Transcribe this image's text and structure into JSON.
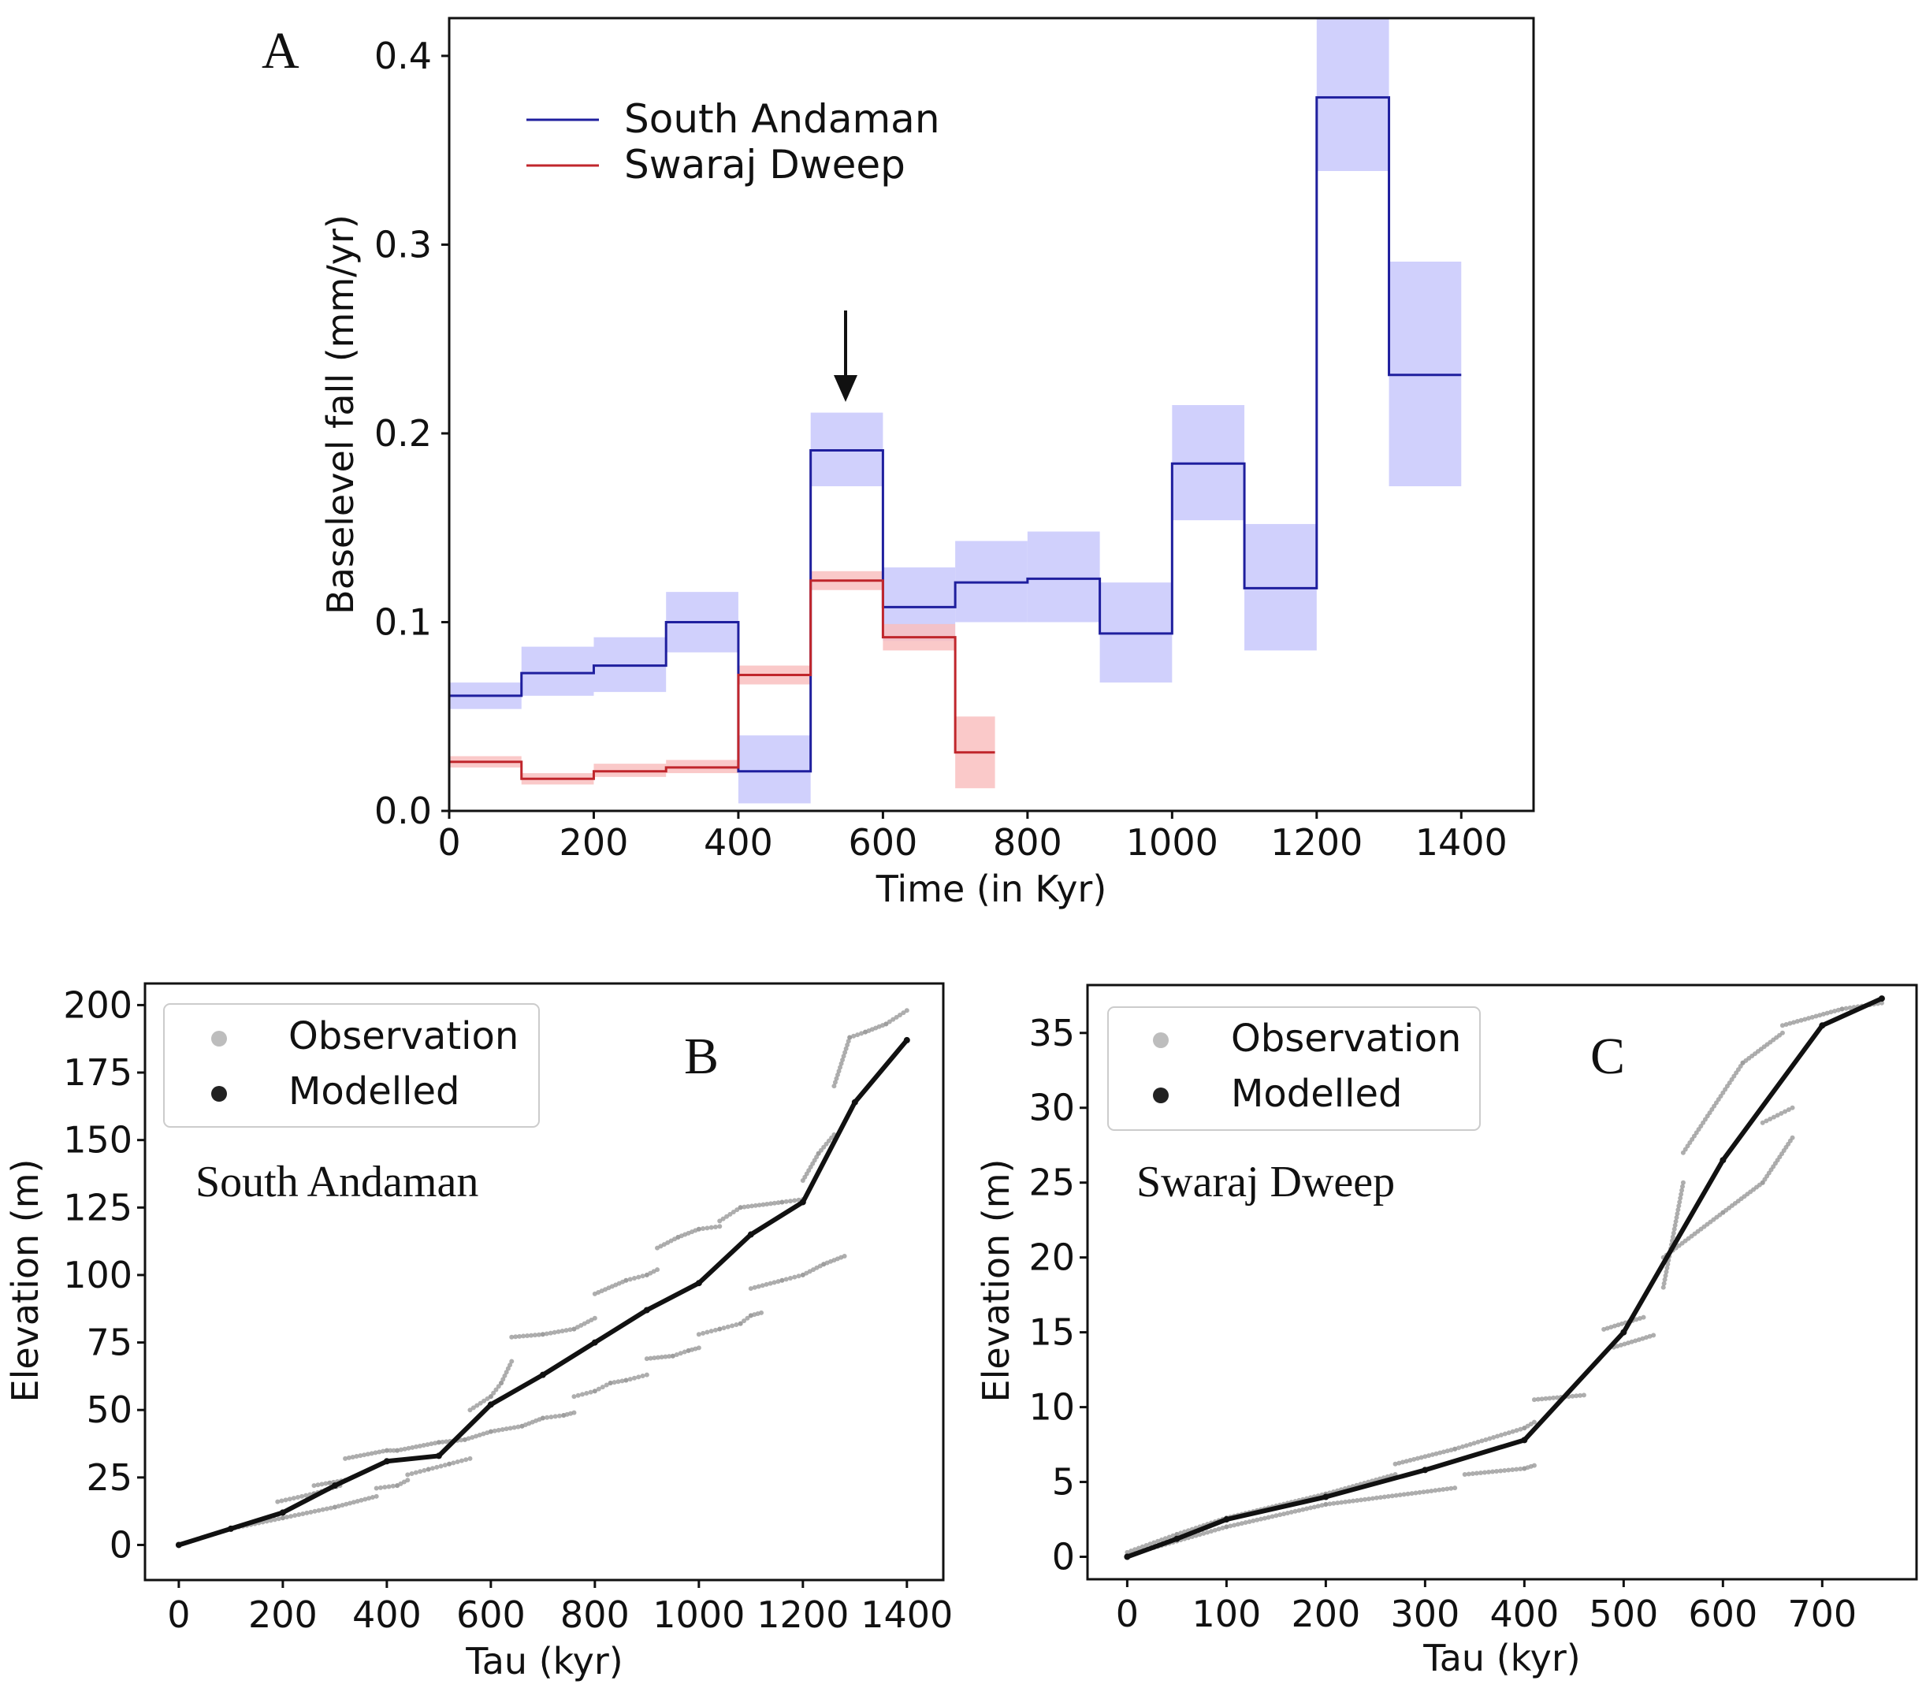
{
  "chart_data": [
    {
      "panel": "A",
      "type": "line",
      "step": true,
      "xlabel": "Time (in Kyr)",
      "ylabel": "Baselevel fall (mm/yr)",
      "xlim": [
        0,
        1500
      ],
      "ylim": [
        0,
        0.42
      ],
      "xticks": [
        "0",
        "200",
        "400",
        "600",
        "800",
        "1000",
        "1200",
        "1400"
      ],
      "yticks": [
        "0.0",
        "0.1",
        "0.2",
        "0.3",
        "0.4"
      ],
      "legend_position": "upper-left",
      "annotation": "arrow pointing down at 550 Kyr",
      "series": [
        {
          "name": "South Andaman",
          "color": "#1f1f9e",
          "band_color": "#c8c8fb",
          "bin_starts": [
            0,
            100,
            200,
            300,
            400,
            500,
            600,
            700,
            800,
            900,
            1000,
            1100,
            1200,
            1300
          ],
          "bin_ends": [
            100,
            200,
            300,
            400,
            500,
            600,
            700,
            800,
            900,
            1000,
            1100,
            1200,
            1300,
            1400
          ],
          "values": [
            0.061,
            0.073,
            0.077,
            0.1,
            0.021,
            0.191,
            0.108,
            0.121,
            0.123,
            0.094,
            0.184,
            0.118,
            0.378,
            0.231
          ],
          "lower": [
            0.054,
            0.061,
            0.063,
            0.084,
            0.004,
            0.172,
            0.09,
            0.1,
            0.1,
            0.068,
            0.154,
            0.085,
            0.339,
            0.172
          ],
          "upper": [
            0.068,
            0.087,
            0.092,
            0.116,
            0.04,
            0.211,
            0.129,
            0.143,
            0.148,
            0.121,
            0.215,
            0.152,
            0.42,
            0.291
          ]
        },
        {
          "name": "Swaraj Dweep",
          "color": "#c0262c",
          "band_color": "#f9c0c0",
          "bin_starts": [
            0,
            100,
            200,
            300,
            400,
            500,
            600,
            700
          ],
          "bin_ends": [
            100,
            200,
            300,
            400,
            500,
            600,
            700,
            755
          ],
          "values": [
            0.026,
            0.017,
            0.021,
            0.023,
            0.072,
            0.122,
            0.092,
            0.031
          ],
          "lower": [
            0.023,
            0.014,
            0.018,
            0.02,
            0.067,
            0.117,
            0.085,
            0.012
          ],
          "upper": [
            0.029,
            0.02,
            0.025,
            0.027,
            0.077,
            0.127,
            0.099,
            0.05
          ]
        }
      ]
    },
    {
      "panel": "B",
      "type": "scatter",
      "title": "South Andaman",
      "xlabel": "Tau (kyr)",
      "ylabel": "Elevation (m)",
      "xlim": [
        -65,
        1470
      ],
      "ylim": [
        -13,
        208
      ],
      "xticks": [
        "0",
        "200",
        "400",
        "600",
        "800",
        "1000",
        "1200",
        "1400"
      ],
      "yticks": [
        "0",
        "25",
        "50",
        "75",
        "100",
        "125",
        "150",
        "175",
        "200"
      ],
      "legend_position": "upper-left",
      "series": [
        {
          "name": "Modelled",
          "color": "#111111",
          "x": [
            0,
            100,
            200,
            300,
            400,
            500,
            600,
            700,
            800,
            900,
            1000,
            1100,
            1200,
            1300,
            1400
          ],
          "y": [
            0,
            6,
            12,
            22,
            31,
            33,
            52,
            63,
            75,
            87,
            97,
            115,
            127,
            164,
            187
          ]
        },
        {
          "name": "Observation",
          "color": "#9a9a9a",
          "segments": [
            {
              "x": [
                0,
                100,
                200,
                300,
                380
              ],
              "y": [
                0,
                6,
                10,
                14,
                18
              ]
            },
            {
              "x": [
                190,
                260,
                310
              ],
              "y": [
                16,
                19,
                22
              ]
            },
            {
              "x": [
                260,
                290,
                320
              ],
              "y": [
                22,
                23,
                24
              ]
            },
            {
              "x": [
                320,
                400,
                420
              ],
              "y": [
                32,
                35,
                35
              ]
            },
            {
              "x": [
                420,
                500,
                550
              ],
              "y": [
                35,
                38,
                39
              ]
            },
            {
              "x": [
                550,
                600,
                660,
                700,
                740,
                760
              ],
              "y": [
                39,
                42,
                44,
                47,
                48,
                49
              ]
            },
            {
              "x": [
                760,
                800,
                830,
                860,
                900
              ],
              "y": [
                55,
                57,
                60,
                61,
                63
              ]
            },
            {
              "x": [
                900,
                950,
                980,
                1000
              ],
              "y": [
                69,
                70,
                72,
                73
              ]
            },
            {
              "x": [
                1000,
                1040,
                1080,
                1100,
                1120
              ],
              "y": [
                78,
                80,
                82,
                85,
                86
              ]
            },
            {
              "x": [
                1100,
                1160,
                1200,
                1240,
                1280
              ],
              "y": [
                95,
                98,
                100,
                104,
                107
              ]
            },
            {
              "x": [
                380,
                420,
                440
              ],
              "y": [
                21,
                22,
                24
              ]
            },
            {
              "x": [
                440,
                480,
                520,
                560
              ],
              "y": [
                26,
                28,
                30,
                32
              ]
            },
            {
              "x": [
                560,
                600,
                620,
                640
              ],
              "y": [
                50,
                55,
                60,
                68
              ]
            },
            {
              "x": [
                640,
                700,
                760,
                800
              ],
              "y": [
                77,
                78,
                80,
                84
              ]
            },
            {
              "x": [
                800,
                860,
                900,
                920
              ],
              "y": [
                93,
                98,
                100,
                102
              ]
            },
            {
              "x": [
                920,
                960,
                1000,
                1040
              ],
              "y": [
                110,
                114,
                117,
                118
              ]
            },
            {
              "x": [
                1040,
                1080,
                1160,
                1200
              ],
              "y": [
                120,
                125,
                127,
                128
              ]
            },
            {
              "x": [
                1200,
                1230,
                1260
              ],
              "y": [
                135,
                145,
                152
              ]
            },
            {
              "x": [
                1260,
                1290,
                1320,
                1360,
                1400
              ],
              "y": [
                170,
                188,
                190,
                193,
                198
              ]
            }
          ]
        }
      ]
    },
    {
      "panel": "C",
      "type": "scatter",
      "title": "Swaraj Dweep",
      "xlabel": "Tau (kyr)",
      "ylabel": "Elevation (m)",
      "xlim": [
        -40,
        795
      ],
      "ylim": [
        -1.5,
        38.2
      ],
      "xticks": [
        "0",
        "100",
        "200",
        "300",
        "400",
        "500",
        "600",
        "700"
      ],
      "yticks": [
        "0",
        "5",
        "10",
        "15",
        "20",
        "25",
        "30",
        "35"
      ],
      "legend_position": "upper-left",
      "series": [
        {
          "name": "Modelled",
          "color": "#111111",
          "x": [
            0,
            50,
            100,
            200,
            300,
            400,
            500,
            600,
            700,
            760
          ],
          "y": [
            0,
            1.2,
            2.5,
            4.0,
            5.8,
            7.8,
            15.0,
            26.5,
            35.5,
            37.3
          ]
        },
        {
          "name": "Observation",
          "color": "#9a9a9a",
          "segments": [
            {
              "x": [
                0,
                50,
                100,
                200,
                270
              ],
              "y": [
                0.3,
                1.5,
                2.6,
                4.2,
                5.5
              ]
            },
            {
              "x": [
                270,
                330,
                400,
                410
              ],
              "y": [
                6.2,
                7.2,
                8.6,
                9.0
              ]
            },
            {
              "x": [
                410,
                460
              ],
              "y": [
                10.5,
                10.8
              ]
            },
            {
              "x": [
                0,
                100,
                200,
                330
              ],
              "y": [
                0.1,
                2.0,
                3.5,
                4.6
              ]
            },
            {
              "x": [
                340,
                400,
                410
              ],
              "y": [
                5.5,
                5.9,
                6.1
              ]
            },
            {
              "x": [
                480,
                520
              ],
              "y": [
                15.2,
                16.0
              ]
            },
            {
              "x": [
                490,
                530
              ],
              "y": [
                14.0,
                14.8
              ]
            },
            {
              "x": [
                540,
                560
              ],
              "y": [
                18.0,
                25.0
              ]
            },
            {
              "x": [
                560,
                620,
                660
              ],
              "y": [
                27.0,
                33.0,
                35.0
              ]
            },
            {
              "x": [
                660,
                720,
                760
              ],
              "y": [
                35.5,
                36.6,
                37.0
              ]
            },
            {
              "x": [
                540,
                600,
                640,
                670
              ],
              "y": [
                20.0,
                23.0,
                25.0,
                28.0
              ]
            },
            {
              "x": [
                640,
                670
              ],
              "y": [
                29.0,
                30.0
              ]
            }
          ]
        }
      ]
    }
  ],
  "panel_labels": {
    "a": "A",
    "b": "B",
    "c": "C"
  },
  "legends": {
    "a": [
      "South Andaman",
      "Swaraj Dweep"
    ],
    "b": [
      "Observation",
      "Modelled"
    ],
    "c": [
      "Observation",
      "Modelled"
    ]
  },
  "subtitles": {
    "b": "South Andaman",
    "c": "Swaraj Dweep"
  }
}
